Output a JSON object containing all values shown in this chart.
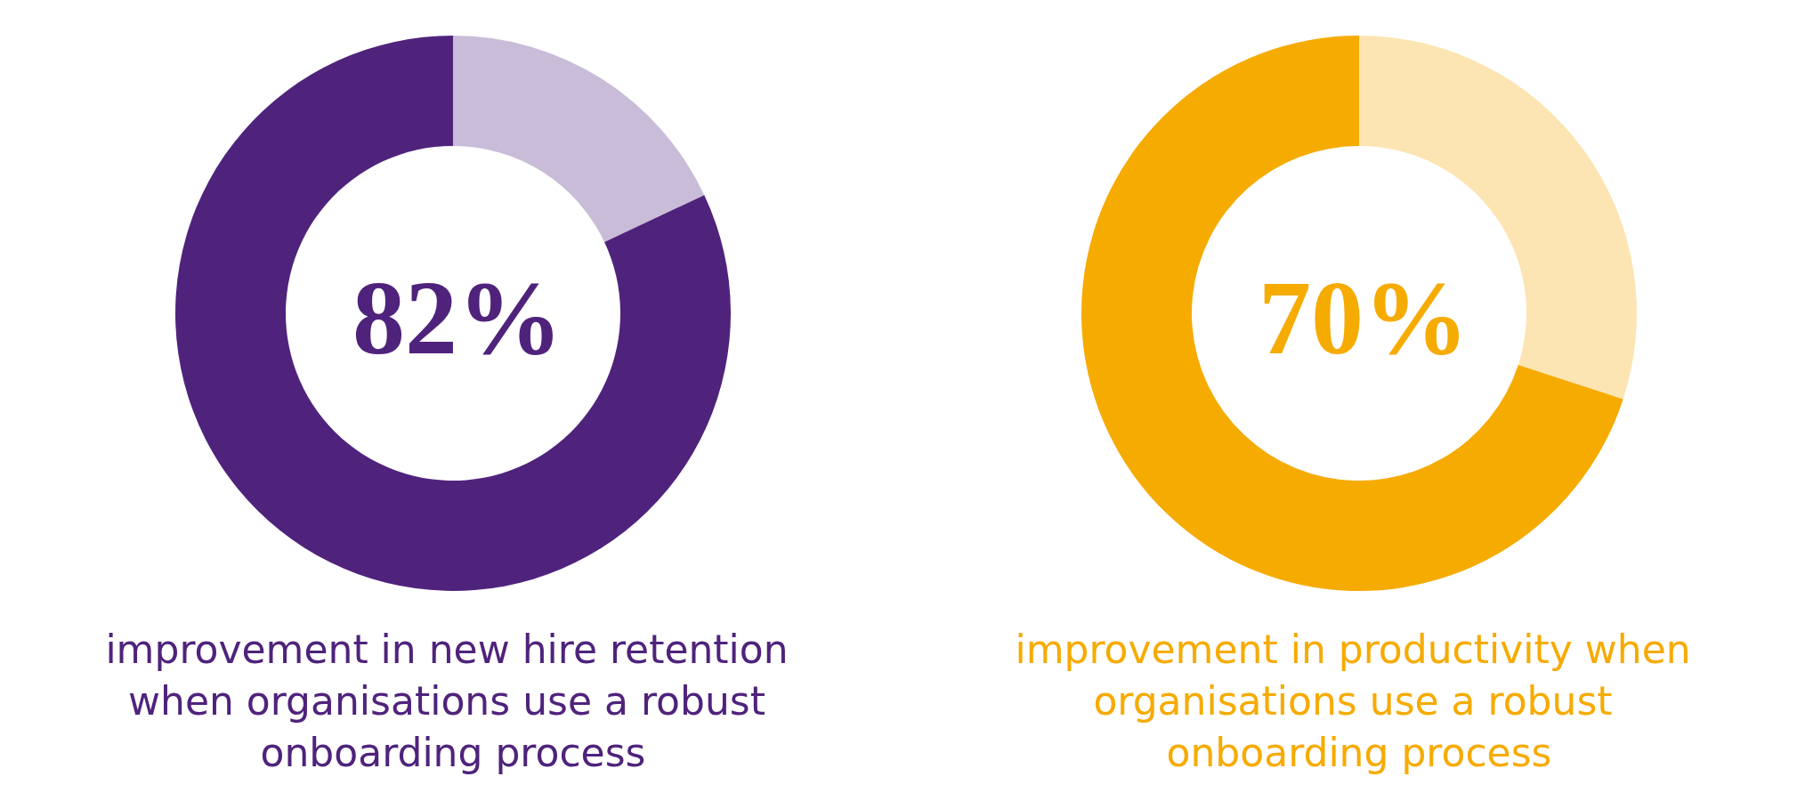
{
  "chart_data": [
    {
      "type": "donut",
      "title": "82%",
      "categories": [
        null,
        null
      ],
      "values": [
        18,
        82
      ],
      "colors": [
        "#c9bcd8",
        "#4f237c"
      ],
      "annotations": [
        "improvement in new hire retention when organisations use a robust onboarding process"
      ]
    },
    {
      "type": "donut",
      "title": "70%",
      "categories": [
        null,
        null
      ],
      "values": [
        30,
        70
      ],
      "colors": [
        "#fce5b3",
        "#f6ab00"
      ],
      "annotations": [
        "improvement in productivity when organisations use a robust onboarding process"
      ]
    }
  ]
}
